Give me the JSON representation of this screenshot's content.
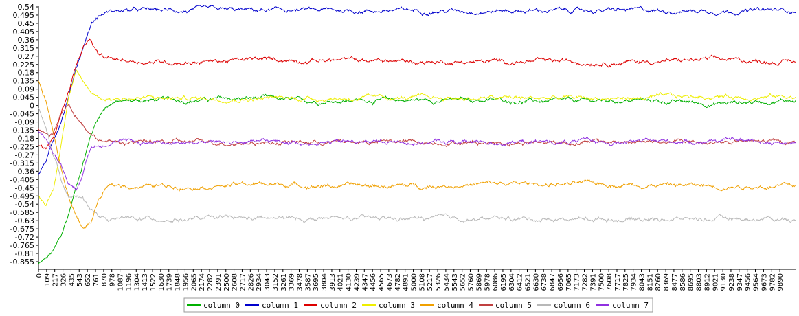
{
  "chart_data": {
    "type": "line",
    "title": "",
    "xlabel": "",
    "ylabel": "",
    "xlim": [
      0,
      10100
    ],
    "ylim": [
      -0.9,
      0.54
    ],
    "grid": false,
    "legend_position": "bottom",
    "y_ticks": [
      "0.54",
      "0.495",
      "0.45",
      "0.405",
      "0.36",
      "0.315",
      "0.27",
      "0.225",
      "0.18",
      "0.135",
      "0.09",
      "0.045",
      "0",
      "-0.045",
      "-0.09",
      "-0.135",
      "-0.18",
      "-0.225",
      "-0.27",
      "-0.315",
      "-0.36",
      "-0.405",
      "-0.45",
      "-0.495",
      "-0.54",
      "-0.585",
      "-0.63",
      "-0.675",
      "-0.72",
      "-0.765",
      "-0.81",
      "-0.855"
    ],
    "x_ticks": [
      "0",
      "109",
      "217",
      "326",
      "435",
      "543",
      "652",
      "761",
      "870",
      "978",
      "1087",
      "1196",
      "1304",
      "1413",
      "1522",
      "1630",
      "1739",
      "1848",
      "1956",
      "2065",
      "2174",
      "2282",
      "2391",
      "2500",
      "2608",
      "2717",
      "2826",
      "2934",
      "3043",
      "3152",
      "3261",
      "3369",
      "3478",
      "3587",
      "3695",
      "3804",
      "3913",
      "4021",
      "4130",
      "4239",
      "4347",
      "4456",
      "4565",
      "4673",
      "4782",
      "4891",
      "5000",
      "5108",
      "5217",
      "5326",
      "5434",
      "5543",
      "5652",
      "5760",
      "5869",
      "5978",
      "6086",
      "6195",
      "6304",
      "6412",
      "6521",
      "6630",
      "6738",
      "6847",
      "6956",
      "7065",
      "7173",
      "7282",
      "7391",
      "7500",
      "7608",
      "7717",
      "7825",
      "7934",
      "8043",
      "8151",
      "8260",
      "8369",
      "8477",
      "8586",
      "8695",
      "8803",
      "8912",
      "9021",
      "9130",
      "9238",
      "9347",
      "9456",
      "9564",
      "9673",
      "9782",
      "9890"
    ],
    "series": [
      {
        "name": "column 0",
        "color": "#00b000",
        "x": [
          0,
          100,
          200,
          300,
          400,
          500,
          600,
          700,
          800,
          900,
          1000,
          1500,
          2000,
          3000,
          3500,
          4000,
          5000,
          6000,
          7000,
          8000,
          9000,
          10000
        ],
        "values": [
          -0.87,
          -0.84,
          -0.8,
          -0.72,
          -0.6,
          -0.45,
          -0.3,
          -0.16,
          -0.06,
          0.0,
          0.02,
          0.03,
          0.03,
          0.04,
          0.02,
          0.03,
          0.03,
          0.03,
          0.02,
          0.03,
          0.01,
          0.03
        ]
      },
      {
        "name": "column 1",
        "color": "#0000cc",
        "x": [
          0,
          100,
          200,
          300,
          400,
          500,
          600,
          700,
          800,
          900,
          1000,
          1500,
          2000,
          3000,
          4000,
          5000,
          6000,
          7000,
          8000,
          9000,
          10000
        ],
        "values": [
          -0.38,
          -0.3,
          -0.2,
          -0.08,
          0.06,
          0.2,
          0.33,
          0.45,
          0.49,
          0.51,
          0.52,
          0.52,
          0.52,
          0.52,
          0.52,
          0.52,
          0.52,
          0.52,
          0.52,
          0.52,
          0.52
        ]
      },
      {
        "name": "column 2",
        "color": "#dd0000",
        "x": [
          0,
          100,
          200,
          300,
          400,
          500,
          600,
          700,
          800,
          900,
          1000,
          1500,
          2000,
          3000,
          4000,
          5000,
          6000,
          7000,
          8000,
          9000,
          10000
        ],
        "values": [
          -0.22,
          -0.24,
          -0.18,
          -0.05,
          0.08,
          0.22,
          0.32,
          0.35,
          0.27,
          0.25,
          0.25,
          0.24,
          0.24,
          0.25,
          0.25,
          0.24,
          0.24,
          0.24,
          0.24,
          0.25,
          0.24
        ]
      },
      {
        "name": "column 3",
        "color": "#eeee00",
        "x": [
          0,
          100,
          200,
          300,
          400,
          500,
          600,
          700,
          800,
          900,
          1000,
          1500,
          2000,
          3000,
          4000,
          5000,
          6000,
          7000,
          8000,
          9000,
          10000
        ],
        "values": [
          -0.5,
          -0.54,
          -0.45,
          -0.2,
          0.05,
          0.18,
          0.12,
          0.07,
          0.05,
          0.04,
          0.04,
          0.04,
          0.04,
          0.04,
          0.04,
          0.04,
          0.04,
          0.04,
          0.04,
          0.05,
          0.05
        ]
      },
      {
        "name": "column 4",
        "color": "#f0a000",
        "x": [
          0,
          100,
          200,
          300,
          400,
          500,
          600,
          700,
          800,
          900,
          1000,
          1500,
          2000,
          3000,
          4000,
          5000,
          6000,
          7000,
          8000,
          9000,
          10000
        ],
        "values": [
          0.13,
          0.02,
          -0.15,
          -0.35,
          -0.5,
          -0.6,
          -0.67,
          -0.64,
          -0.52,
          -0.46,
          -0.44,
          -0.44,
          -0.44,
          -0.43,
          -0.44,
          -0.44,
          -0.43,
          -0.43,
          -0.43,
          -0.44,
          -0.44
        ]
      },
      {
        "name": "column 5",
        "color": "#c04040",
        "x": [
          0,
          100,
          200,
          300,
          400,
          500,
          600,
          700,
          800,
          900,
          1000,
          1500,
          2000,
          3000,
          4000,
          5000,
          6000,
          7000,
          8000,
          9000,
          10000
        ],
        "values": [
          -0.13,
          -0.16,
          -0.15,
          -0.05,
          0.02,
          -0.05,
          -0.1,
          -0.15,
          -0.18,
          -0.2,
          -0.2,
          -0.2,
          -0.2,
          -0.2,
          -0.2,
          -0.2,
          -0.2,
          -0.2,
          -0.2,
          -0.2,
          -0.2
        ]
      },
      {
        "name": "column 6",
        "color": "#b8b8b8",
        "x": [
          0,
          100,
          200,
          300,
          400,
          500,
          600,
          700,
          800,
          900,
          1000,
          1500,
          2000,
          3000,
          4000,
          5000,
          6000,
          7000,
          8000,
          9000,
          10000
        ],
        "values": [
          -0.01,
          -0.12,
          -0.27,
          -0.4,
          -0.48,
          -0.5,
          -0.52,
          -0.56,
          -0.6,
          -0.62,
          -0.62,
          -0.62,
          -0.62,
          -0.62,
          -0.62,
          -0.62,
          -0.62,
          -0.62,
          -0.62,
          -0.62,
          -0.62
        ]
      },
      {
        "name": "column 7",
        "color": "#9030e0",
        "x": [
          0,
          100,
          200,
          300,
          400,
          500,
          600,
          700,
          800,
          900,
          1000,
          1500,
          2000,
          3000,
          4000,
          5000,
          6000,
          7000,
          8000,
          9000,
          10000
        ],
        "values": [
          -0.15,
          -0.18,
          -0.25,
          -0.32,
          -0.42,
          -0.46,
          -0.35,
          -0.22,
          -0.2,
          -0.2,
          -0.2,
          -0.2,
          -0.2,
          -0.2,
          -0.2,
          -0.2,
          -0.2,
          -0.2,
          -0.2,
          -0.19,
          -0.2
        ]
      }
    ]
  }
}
